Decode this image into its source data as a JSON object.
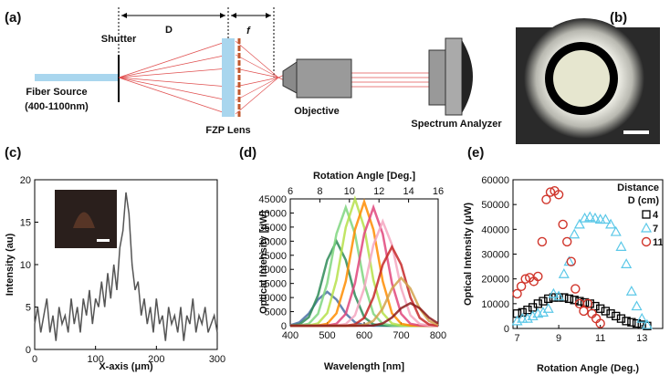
{
  "diagram": {
    "panel_label": "(a)",
    "distance": "D",
    "focal": "f",
    "shutter": "Shutter",
    "source": [
      "Fiber Source",
      "(400-1100nm)"
    ],
    "lens": "FZP Lens",
    "objective": "Objective",
    "analyzer": "Spectrum Analyzer"
  },
  "image": {
    "panel_label": "(b)"
  },
  "chart_data": [
    {
      "type": "line",
      "panel_label": "(c)",
      "xlabel": "X-axis (μm)",
      "ylabel": "Intensity (au)",
      "color": "#555555",
      "x": [
        0,
        5,
        10,
        15,
        20,
        25,
        30,
        35,
        40,
        45,
        50,
        55,
        60,
        65,
        70,
        75,
        80,
        85,
        90,
        95,
        100,
        105,
        110,
        115,
        120,
        125,
        130,
        135,
        140,
        145,
        150,
        155,
        160,
        165,
        170,
        175,
        180,
        185,
        190,
        195,
        200,
        205,
        210,
        215,
        220,
        225,
        230,
        235,
        240,
        245,
        250,
        255,
        260,
        265,
        270,
        275,
        280,
        285,
        290,
        295,
        300
      ],
      "values": [
        3,
        5,
        2,
        4,
        6,
        2,
        4,
        1,
        5,
        3,
        4,
        2,
        6,
        3,
        5,
        2,
        6,
        4,
        7,
        3,
        6,
        5,
        8,
        5,
        9,
        6,
        10,
        7,
        12,
        14,
        18.5,
        16,
        10,
        7,
        8,
        4,
        6,
        3,
        5,
        2,
        6,
        3,
        4,
        1,
        5,
        3,
        4,
        2,
        5,
        1,
        4,
        3,
        6,
        2,
        4,
        3,
        5,
        2,
        3,
        4,
        2
      ],
      "xlim": [
        0,
        300
      ],
      "xticks": [
        0,
        100,
        200,
        300
      ],
      "ylim": [
        0,
        20
      ],
      "yticks": [
        0,
        5,
        10,
        15,
        20
      ]
    },
    {
      "type": "line",
      "panel_label": "(d)",
      "xlabel": "Wavelength [nm]",
      "ylabel": "Optical Intensity [μW]",
      "x2label": "Rotation Angle [Deg.]",
      "x": [
        400,
        425,
        450,
        475,
        500,
        525,
        550,
        575,
        600,
        625,
        650,
        675,
        700,
        725,
        750,
        775,
        800
      ],
      "series": [
        {
          "color": "#4a6fa5",
          "values": [
            200,
            1200,
            4300,
            9300,
            12000,
            9300,
            4300,
            1200,
            200,
            0,
            0,
            0,
            0,
            0,
            0,
            0,
            0
          ]
        },
        {
          "color": "#2e8b57",
          "values": [
            100,
            500,
            3000,
            10800,
            23300,
            30000,
            23300,
            10800,
            3000,
            500,
            100,
            0,
            0,
            0,
            0,
            0,
            0
          ]
        },
        {
          "color": "#7fd67f",
          "values": [
            0,
            100,
            700,
            4200,
            15100,
            32600,
            42000,
            32600,
            15100,
            4200,
            700,
            100,
            0,
            0,
            0,
            0,
            0
          ]
        },
        {
          "color": "#b6e04a",
          "values": [
            0,
            0,
            100,
            800,
            4500,
            16200,
            34900,
            45000,
            34900,
            16200,
            4500,
            800,
            100,
            0,
            0,
            0,
            0
          ]
        },
        {
          "color": "#ff8c00",
          "values": [
            0,
            0,
            0,
            100,
            700,
            4400,
            15800,
            34100,
            44000,
            34100,
            15800,
            4400,
            700,
            100,
            0,
            0,
            0
          ]
        },
        {
          "color": "#e0457b",
          "values": [
            0,
            0,
            0,
            0,
            100,
            700,
            4200,
            15100,
            32600,
            42000,
            32600,
            15100,
            4200,
            700,
            100,
            0,
            0
          ]
        },
        {
          "color": "#f4a6c0",
          "values": [
            0,
            0,
            0,
            0,
            0,
            100,
            600,
            3700,
            13300,
            28700,
            37000,
            28700,
            13300,
            3700,
            600,
            100,
            0
          ]
        },
        {
          "color": "#c62828",
          "values": [
            0,
            0,
            0,
            0,
            0,
            0,
            0,
            500,
            2800,
            10100,
            21700,
            28000,
            21700,
            10100,
            2800,
            500,
            0
          ]
        },
        {
          "color": "#d2a24c",
          "values": [
            0,
            0,
            0,
            0,
            0,
            0,
            0,
            0,
            300,
            1700,
            6100,
            13200,
            17000,
            13200,
            6100,
            1700,
            300
          ]
        },
        {
          "color": "#8b1a1a",
          "values": [
            0,
            0,
            0,
            0,
            0,
            0,
            0,
            0,
            0,
            100,
            800,
            2900,
            6200,
            8000,
            6200,
            2900,
            800
          ]
        }
      ],
      "xlim": [
        400,
        800
      ],
      "xticks": [
        400,
        500,
        600,
        700,
        800
      ],
      "ylim": [
        0,
        45000
      ],
      "yticks": [
        0,
        5000,
        10000,
        15000,
        20000,
        25000,
        30000,
        35000,
        40000,
        45000
      ],
      "x2lim": [
        6,
        16
      ],
      "x2ticks": [
        6,
        8,
        10,
        12,
        14,
        16
      ]
    },
    {
      "type": "scatter",
      "panel_label": "(e)",
      "xlabel": "Rotation  Angle (Deg.)",
      "ylabel": "Optical Intensity (μW)",
      "legend_title": [
        "Distance",
        "D (cm)"
      ],
      "series": [
        {
          "name": "4",
          "color": "#000000",
          "marker": "square",
          "x": [
            7,
            7.25,
            7.5,
            7.75,
            8,
            8.25,
            8.5,
            8.75,
            9,
            9.25,
            9.5,
            9.75,
            10,
            10.25,
            10.5,
            10.75,
            11,
            11.25,
            11.5,
            11.75,
            12,
            12.25,
            12.5,
            12.75,
            13,
            13.25
          ],
          "values": [
            6000,
            6500,
            7500,
            8500,
            10000,
            11000,
            12000,
            12500,
            12500,
            12500,
            12000,
            11500,
            11000,
            10500,
            10000,
            9000,
            8000,
            7000,
            6000,
            5000,
            4000,
            3000,
            2500,
            2000,
            1500,
            1000
          ]
        },
        {
          "name": "7",
          "color": "#5bc8e8",
          "marker": "triangle",
          "x": [
            7,
            7.25,
            7.5,
            7.75,
            8,
            8.25,
            8.5,
            8.75,
            9,
            9.25,
            9.5,
            9.75,
            10,
            10.25,
            10.5,
            10.75,
            11,
            11.25,
            11.5,
            11.75,
            12,
            12.25,
            12.5,
            12.75,
            13,
            13.25
          ],
          "values": [
            3000,
            4000,
            4000,
            5000,
            6000,
            6500,
            8000,
            14000,
            13000,
            22000,
            27000,
            38000,
            42000,
            44500,
            45000,
            44500,
            44000,
            44000,
            42000,
            39000,
            33000,
            26000,
            15000,
            9000,
            4000,
            1500
          ]
        },
        {
          "name": "11",
          "color": "#d0352b",
          "marker": "circle",
          "x": [
            7,
            7.2,
            7.4,
            7.6,
            7.8,
            8,
            8.2,
            8.4,
            8.6,
            8.8,
            9,
            9.2,
            9.4,
            9.6,
            9.8,
            10,
            10.2,
            10.4,
            10.6,
            10.8,
            11
          ],
          "values": [
            14000,
            17000,
            20000,
            20500,
            19000,
            21000,
            35000,
            52000,
            55000,
            55500,
            54000,
            42000,
            35000,
            27000,
            16000,
            10000,
            7000,
            10000,
            6000,
            4000,
            2000
          ]
        }
      ],
      "xlim": [
        6.8,
        14
      ],
      "xticks": [
        7,
        9,
        11,
        13
      ],
      "ylim": [
        0,
        60000
      ],
      "yticks": [
        0,
        10000,
        20000,
        30000,
        40000,
        50000,
        60000
      ]
    }
  ]
}
